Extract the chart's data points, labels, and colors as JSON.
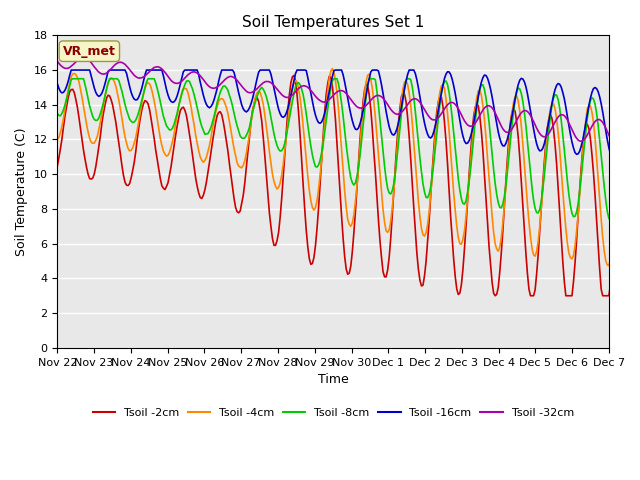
{
  "title": "Soil Temperatures Set 1",
  "xlabel": "Time",
  "ylabel": "Soil Temperature (C)",
  "ylim": [
    0,
    18
  ],
  "yticks": [
    0,
    2,
    4,
    6,
    8,
    10,
    12,
    14,
    16,
    18
  ],
  "background_color": "#ffffff",
  "plot_bg_color": "#e8e8e8",
  "series_colors": {
    "Tsoil -2cm": "#cc0000",
    "Tsoil -4cm": "#ff8800",
    "Tsoil -8cm": "#00cc00",
    "Tsoil -16cm": "#0000cc",
    "Tsoil -32cm": "#aa00aa"
  },
  "annotation_label": "VR_met",
  "tick_labels": [
    "Nov 22",
    "Nov 23",
    "Nov 24",
    "Nov 25",
    "Nov 26",
    "Nov 27",
    "Nov 28",
    "Nov 29",
    "Nov 30",
    "Dec 1",
    "Dec 2",
    "Dec 3",
    "Dec 4",
    "Dec 5",
    "Dec 6",
    "Dec 7"
  ]
}
